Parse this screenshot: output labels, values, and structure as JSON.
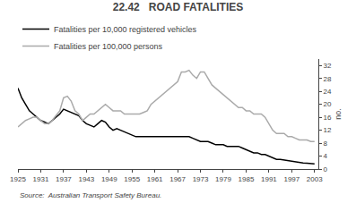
{
  "chart_data": {
    "type": "line",
    "title": "22.42   ROAD FATALITIES",
    "annotations": [
      "Source:  Australian Transport Safety Bureau."
    ],
    "y_label": "no.",
    "x": [
      1925,
      1926,
      1927,
      1928,
      1929,
      1930,
      1931,
      1932,
      1933,
      1934,
      1935,
      1936,
      1937,
      1938,
      1939,
      1940,
      1941,
      1942,
      1943,
      1944,
      1945,
      1946,
      1947,
      1948,
      1949,
      1950,
      1951,
      1952,
      1953,
      1954,
      1955,
      1956,
      1957,
      1958,
      1959,
      1960,
      1961,
      1962,
      1963,
      1964,
      1965,
      1966,
      1967,
      1968,
      1969,
      1970,
      1971,
      1972,
      1973,
      1974,
      1975,
      1976,
      1977,
      1978,
      1979,
      1980,
      1981,
      1982,
      1983,
      1984,
      1985,
      1986,
      1987,
      1988,
      1989,
      1990,
      1991,
      1992,
      1993,
      1994,
      1995,
      1996,
      1997,
      1998,
      1999,
      2000,
      2001,
      2002,
      2003
    ],
    "series": [
      {
        "name": "Fatalities per 10,000 registered vehicles",
        "color": "#000000",
        "values": [
          25,
          22,
          20,
          18,
          17,
          16,
          15,
          14.5,
          14,
          15,
          16,
          17,
          18.5,
          18,
          17.5,
          17,
          16.5,
          15,
          14,
          13.5,
          13,
          14,
          15,
          14.5,
          13,
          12,
          12.5,
          12,
          11.5,
          11,
          10.5,
          10,
          10,
          10,
          10,
          10,
          10,
          10,
          10,
          10,
          10,
          10,
          10,
          10,
          10,
          10,
          9.5,
          9,
          8.5,
          8.5,
          8.5,
          8,
          7.5,
          7.5,
          7.5,
          7,
          7,
          7,
          7,
          6.5,
          6,
          5.5,
          5,
          5,
          4.5,
          4.5,
          4,
          3.5,
          3,
          3,
          2.8,
          2.5,
          2.3,
          2.2,
          2,
          1.9,
          1.8,
          1.7,
          1.6
        ]
      },
      {
        "name": "Fatalities per 100,000 persons",
        "color": "#aaaaaa",
        "values": [
          13,
          14,
          15,
          15.5,
          16,
          16,
          15,
          14,
          14,
          15,
          16.5,
          18,
          22,
          22.5,
          21,
          18,
          17,
          15,
          16,
          17,
          17,
          18,
          19,
          20,
          19,
          18,
          18,
          18,
          17,
          17,
          17,
          17,
          17,
          17.5,
          18,
          20,
          21,
          22,
          23,
          24,
          25,
          26,
          27,
          30,
          30,
          30.5,
          29,
          28,
          30,
          30,
          28,
          26,
          25,
          24,
          23,
          22,
          21,
          20,
          19,
          19,
          18,
          18,
          17,
          17,
          17,
          16,
          14,
          12,
          11,
          11,
          11,
          10,
          10,
          9.5,
          9,
          9,
          9,
          8.5,
          8.5
        ]
      }
    ],
    "xlim": [
      1925,
      2004
    ],
    "xticks": [
      1925,
      1931,
      1937,
      1943,
      1949,
      1955,
      1961,
      1967,
      1973,
      1979,
      1985,
      1991,
      1997,
      2003
    ],
    "ylim": [
      0,
      34
    ],
    "yticks": [
      0,
      4,
      8,
      12,
      16,
      20,
      24,
      28,
      32
    ],
    "grid": false,
    "legend": "upper left"
  }
}
